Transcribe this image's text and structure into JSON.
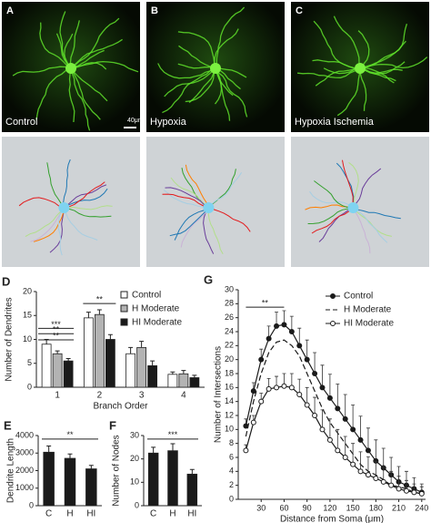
{
  "image_panels": [
    {
      "letter": "A",
      "caption": "Control",
      "scale": "40μm"
    },
    {
      "letter": "B",
      "caption": "Hypoxia"
    },
    {
      "letter": "C",
      "caption": "Hypoxia Ischemia"
    }
  ],
  "chart_data": [
    {
      "type": "bar",
      "panel": "D",
      "ylabel": "Number of Dendrites",
      "xlabel": "Branch Order",
      "categories": [
        "1",
        "2",
        "3",
        "4"
      ],
      "ylim": [
        0,
        20
      ],
      "yticks": [
        0,
        5,
        10,
        15,
        20
      ],
      "series": [
        {
          "name": "Control",
          "color": "#ffffff",
          "values": [
            9,
            14.5,
            7,
            2.7
          ],
          "errors": [
            1,
            1.2,
            1.3,
            0.5
          ]
        },
        {
          "name": "H Moderate",
          "color": "#b3b3b3",
          "values": [
            7,
            15.2,
            8.3,
            2.8
          ],
          "errors": [
            0.6,
            1,
            1.3,
            0.7
          ]
        },
        {
          "name": "HI Moderate",
          "color": "#1a1a1a",
          "values": [
            5.5,
            10,
            4.5,
            2
          ],
          "errors": [
            0.5,
            1,
            1,
            0.5
          ]
        }
      ],
      "annotations": [
        "***",
        "**",
        "**",
        "**"
      ]
    },
    {
      "type": "bar",
      "panel": "E",
      "ylabel": "Dendrite Length",
      "categories": [
        "C",
        "H",
        "HI"
      ],
      "ylim": [
        0,
        4000
      ],
      "yticks": [
        0,
        1000,
        2000,
        3000,
        4000
      ],
      "series": [
        {
          "color": "#1a1a1a",
          "values": [
            3050,
            2700,
            2100
          ],
          "errors": [
            350,
            250,
            200
          ]
        }
      ],
      "annotations": [
        "**"
      ]
    },
    {
      "type": "bar",
      "panel": "F",
      "ylabel": "Number of Nodes",
      "categories": [
        "C",
        "H",
        "HI"
      ],
      "ylim": [
        0,
        30
      ],
      "yticks": [
        0,
        10,
        20,
        30
      ],
      "series": [
        {
          "color": "#1a1a1a",
          "values": [
            22.5,
            23.5,
            13.5
          ],
          "errors": [
            2.5,
            3,
            2
          ]
        }
      ],
      "annotations": [
        "***"
      ]
    },
    {
      "type": "line",
      "panel": "G",
      "ylabel": "Number of Intersections",
      "xlabel": "Distance from Soma (μm)",
      "x": [
        10,
        20,
        30,
        40,
        50,
        60,
        70,
        80,
        90,
        100,
        110,
        120,
        130,
        140,
        150,
        160,
        170,
        180,
        190,
        200,
        210,
        220,
        230,
        240
      ],
      "xlim": [
        0,
        245
      ],
      "xticks": [
        30,
        60,
        90,
        120,
        150,
        180,
        210,
        240
      ],
      "ylim": [
        0,
        30
      ],
      "yticks": [
        0,
        2,
        4,
        6,
        8,
        10,
        12,
        14,
        16,
        18,
        20,
        22,
        24,
        26,
        28,
        30
      ],
      "series": [
        {
          "name": "Control",
          "color": "#1a1a1a",
          "marker": "filled",
          "dash": false,
          "values": [
            10.5,
            15.5,
            20,
            23,
            24.8,
            25,
            24,
            22,
            20,
            18,
            16,
            14.5,
            13,
            11.5,
            10,
            8.5,
            7,
            5.5,
            4.5,
            3.5,
            2.5,
            2,
            1.5,
            1
          ],
          "errors": [
            1,
            1.2,
            1.5,
            1.8,
            2,
            2,
            2.2,
            2.5,
            2.8,
            3,
            3.2,
            3.4,
            3.5,
            3.5,
            3.5,
            3.4,
            3.2,
            3,
            2.8,
            2.5,
            2.2,
            2,
            1.6,
            1.2
          ]
        },
        {
          "name": "H Moderate",
          "color": "#1a1a1a",
          "marker": "none",
          "dash": true,
          "values": [
            9,
            14,
            18,
            21,
            22.5,
            22.8,
            22,
            20.5,
            18,
            15.5,
            13,
            11,
            9.5,
            8,
            6.5,
            5,
            4,
            3.5,
            2.8,
            2,
            1.8,
            1.5,
            1,
            0.8
          ]
        },
        {
          "name": "HI Moderate",
          "color": "#1a1a1a",
          "marker": "open",
          "dash": false,
          "values": [
            7,
            11,
            14,
            15.8,
            16,
            16.2,
            16,
            15,
            13.5,
            12,
            10,
            8.5,
            7,
            6,
            5,
            4,
            3.5,
            3,
            2.5,
            2,
            1.5,
            1.2,
            1,
            0.8
          ],
          "errors": [
            0.8,
            1,
            1.2,
            1.5,
            1.6,
            1.8,
            2,
            2.2,
            2.5,
            2.6,
            2.8,
            3,
            3,
            3,
            3,
            2.8,
            2.6,
            2.4,
            2.2,
            2,
            1.8,
            1.5,
            1.2,
            1
          ]
        }
      ],
      "annotations": [
        "**"
      ]
    }
  ]
}
